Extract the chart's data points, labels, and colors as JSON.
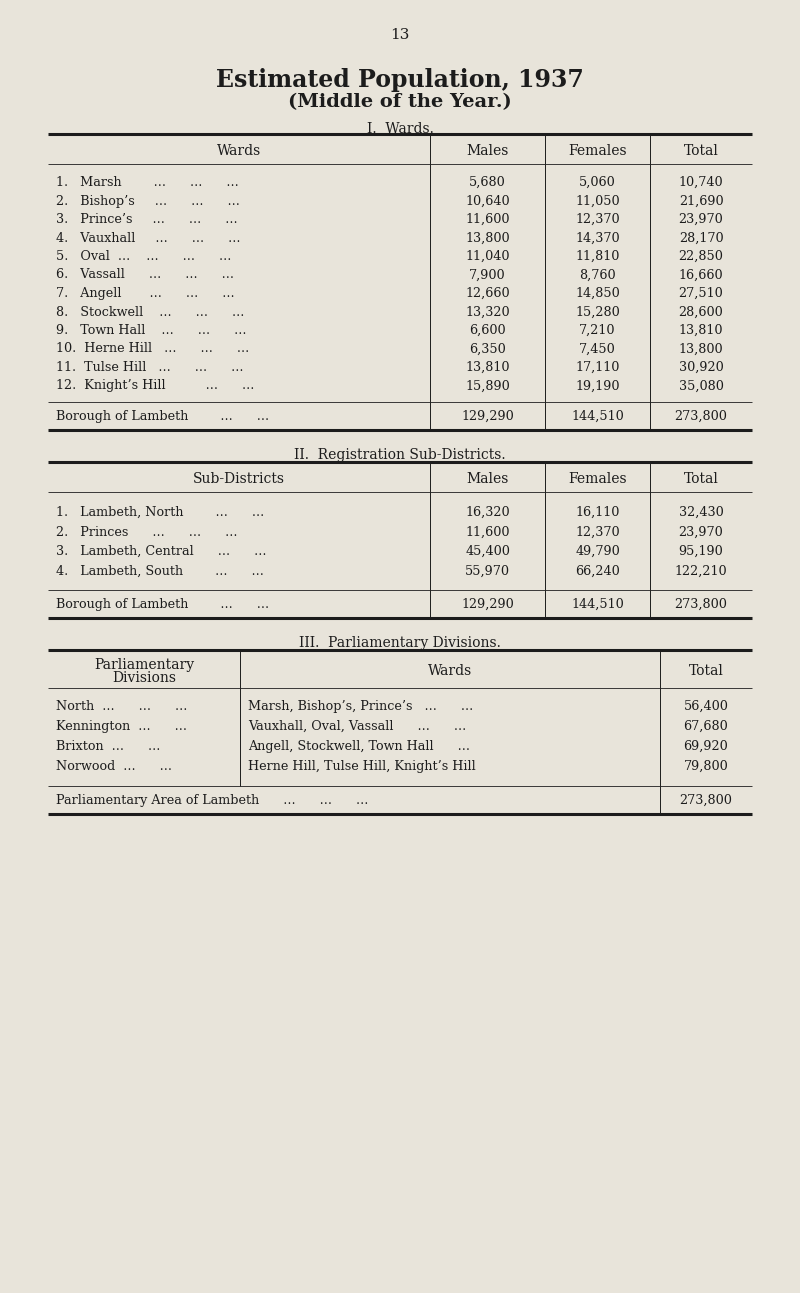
{
  "page_number": "13",
  "title_line1": "Estimated Population, 1937",
  "title_line2": "(Middle of the Year.)",
  "bg_color": "#e8e4da",
  "section1_header": "I.  Wards.",
  "section1_rows": [
    [
      "1.   Marsh        ...      ...      ...",
      "5,680",
      "5,060",
      "10,740"
    ],
    [
      "2.   Bishop’s     ...      ...      ...",
      "10,640",
      "11,050",
      "21,690"
    ],
    [
      "3.   Prince’s     ...      ...      ...",
      "11,600",
      "12,370",
      "23,970"
    ],
    [
      "4.   Vauxhall     ...      ...      ...",
      "13,800",
      "14,370",
      "28,170"
    ],
    [
      "5.   Oval  ...    ...      ...      ...",
      "11,040",
      "11,810",
      "22,850"
    ],
    [
      "6.   Vassall      ...      ...      ...",
      "7,900",
      "8,760",
      "16,660"
    ],
    [
      "7.   Angell       ...      ...      ...",
      "12,660",
      "14,850",
      "27,510"
    ],
    [
      "8.   Stockwell    ...      ...      ...",
      "13,320",
      "15,280",
      "28,600"
    ],
    [
      "9.   Town Hall    ...      ...      ...",
      "6,600",
      "7,210",
      "13,810"
    ],
    [
      "10.  Herne Hill   ...      ...      ...",
      "6,350",
      "7,450",
      "13,800"
    ],
    [
      "11.  Tulse Hill   ...      ...      ...",
      "13,810",
      "17,110",
      "30,920"
    ],
    [
      "12.  Knight’s Hill          ...      ...",
      "15,890",
      "19,190",
      "35,080"
    ]
  ],
  "section1_total": [
    "Borough of Lambeth        ...      ...",
    "129,290",
    "144,510",
    "273,800"
  ],
  "section2_header": "II.  Registration Sub-Districts.",
  "section2_rows": [
    [
      "1.   Lambeth, North        ...      ...",
      "16,320",
      "16,110",
      "32,430"
    ],
    [
      "2.   Princes      ...      ...      ...",
      "11,600",
      "12,370",
      "23,970"
    ],
    [
      "3.   Lambeth, Central      ...      ...",
      "45,400",
      "49,790",
      "95,190"
    ],
    [
      "4.   Lambeth, South        ...      ...",
      "55,970",
      "66,240",
      "122,210"
    ]
  ],
  "section2_total": [
    "Borough of Lambeth        ...      ...",
    "129,290",
    "144,510",
    "273,800"
  ],
  "section3_header": "III.  Parliamentary Divisions.",
  "section3_rows": [
    [
      "North  ...      ...      ...",
      "Marsh, Bishop’s, Prince’s   ...      ...",
      "56,400"
    ],
    [
      "Kennington  ...      ...",
      "Vauxhall, Oval, Vassall      ...      ...",
      "67,680"
    ],
    [
      "Brixton  ...      ...",
      "Angell, Stockwell, Town Hall      ...",
      "69,920"
    ],
    [
      "Norwood  ...      ...",
      "Herne Hill, Tulse Hill, Knight’s Hill",
      "79,800"
    ]
  ],
  "section3_total": [
    "Parliamentary Area of Lambeth      ...      ...      ...",
    "273,800"
  ]
}
